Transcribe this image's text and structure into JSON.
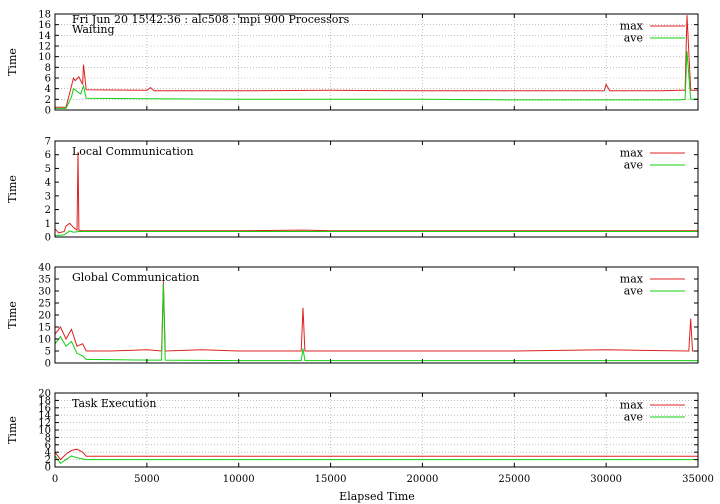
{
  "header_line": "Fri Jun 20 15:42:36 : alc508 : mpi 900 Processors",
  "xlabel": "Elapsed Time",
  "colors": {
    "max": "#e02020",
    "ave": "#10d010",
    "frame": "#000000",
    "grid": "#9a9a9a"
  },
  "chart_data": [
    {
      "type": "line",
      "title": "Waiting",
      "ylabel": "Time",
      "xlim": [
        0,
        35000
      ],
      "ylim": [
        0,
        18
      ],
      "yticks": [
        0,
        2,
        4,
        6,
        8,
        10,
        12,
        14,
        16,
        18
      ],
      "xticks": [
        0,
        5000,
        10000,
        15000,
        20000,
        25000,
        30000,
        35000
      ],
      "grid": true,
      "legend": "top-right",
      "series": [
        {
          "name": "max",
          "color": "#e02020",
          "x": [
            0,
            600,
            900,
            1000,
            1100,
            1300,
            1500,
            1550,
            1700,
            5000,
            5200,
            5400,
            10000,
            15000,
            20000,
            25000,
            29900,
            30000,
            30200,
            33000,
            34000,
            34300,
            34400,
            34600,
            35000
          ],
          "y": [
            0.5,
            0.5,
            4.5,
            6.0,
            5.5,
            6.2,
            4.8,
            8.5,
            3.8,
            3.7,
            4.2,
            3.6,
            3.6,
            3.7,
            3.6,
            3.6,
            3.6,
            4.8,
            3.6,
            3.6,
            3.7,
            3.7,
            17.8,
            3.7,
            3.7
          ]
        },
        {
          "name": "ave",
          "color": "#10d010",
          "x": [
            0,
            600,
            900,
            1000,
            1200,
            1400,
            1550,
            1700,
            5000,
            10000,
            15000,
            20000,
            25000,
            30000,
            34000,
            34300,
            34400,
            34600,
            35000
          ],
          "y": [
            0.3,
            0.3,
            2.5,
            4.0,
            3.5,
            3.0,
            4.5,
            2.2,
            2.1,
            2.0,
            2.0,
            2.0,
            1.9,
            1.9,
            1.9,
            2.0,
            11.0,
            2.0,
            2.0
          ]
        }
      ]
    },
    {
      "type": "line",
      "title": "Local Communication",
      "ylabel": "Time",
      "xlim": [
        0,
        35000
      ],
      "ylim": [
        0,
        7
      ],
      "yticks": [
        0,
        1,
        2,
        3,
        4,
        5,
        6,
        7
      ],
      "xticks": [
        0,
        5000,
        10000,
        15000,
        20000,
        25000,
        30000,
        35000
      ],
      "grid": false,
      "legend": "top-right",
      "series": [
        {
          "name": "max",
          "color": "#e02020",
          "x": [
            0,
            200,
            500,
            600,
            800,
            1000,
            1200,
            1250,
            1300,
            1450,
            5000,
            10000,
            13500,
            15000,
            20000,
            25000,
            30000,
            35000
          ],
          "y": [
            0.6,
            0.3,
            0.4,
            0.8,
            1.0,
            0.7,
            0.5,
            6.2,
            0.5,
            0.45,
            0.45,
            0.45,
            0.5,
            0.45,
            0.45,
            0.45,
            0.45,
            0.45
          ]
        },
        {
          "name": "ave",
          "color": "#10d010",
          "x": [
            0,
            500,
            800,
            1000,
            1300,
            5000,
            15000,
            25000,
            35000
          ],
          "y": [
            0.1,
            0.15,
            0.45,
            0.35,
            0.4,
            0.4,
            0.4,
            0.4,
            0.4
          ]
        }
      ]
    },
    {
      "type": "line",
      "title": "Global Communication",
      "ylabel": "Time",
      "xlim": [
        0,
        35000
      ],
      "ylim": [
        0,
        40
      ],
      "yticks": [
        0,
        5,
        10,
        15,
        20,
        25,
        30,
        35,
        40
      ],
      "xticks": [
        0,
        5000,
        10000,
        15000,
        20000,
        25000,
        30000,
        35000
      ],
      "grid": false,
      "legend": "top-right",
      "series": [
        {
          "name": "max",
          "color": "#e02020",
          "x": [
            0,
            300,
            600,
            900,
            1200,
            1500,
            1700,
            3000,
            5000,
            5800,
            5900,
            6000,
            8000,
            10000,
            13400,
            13500,
            13600,
            15000,
            20000,
            25000,
            30000,
            34500,
            34600,
            34700,
            35000
          ],
          "y": [
            12,
            15,
            10,
            14,
            7,
            8,
            5,
            5,
            5.5,
            5,
            34,
            5,
            5.5,
            5,
            5,
            23,
            5,
            5,
            5,
            5,
            5.5,
            5,
            18.5,
            5,
            5
          ]
        },
        {
          "name": "ave",
          "color": "#10d010",
          "x": [
            0,
            300,
            600,
            900,
            1200,
            1500,
            1700,
            5000,
            5800,
            5900,
            6000,
            10000,
            13400,
            13500,
            13600,
            20000,
            30000,
            35000
          ],
          "y": [
            8,
            11,
            7,
            9,
            4,
            3,
            1.5,
            1.2,
            1.2,
            33,
            1.2,
            1.0,
            1.0,
            6,
            1.0,
            1.0,
            1.0,
            1.0
          ]
        }
      ]
    },
    {
      "type": "line",
      "title": "Task Execution",
      "ylabel": "Time",
      "xlim": [
        0,
        35000
      ],
      "ylim": [
        0,
        20
      ],
      "yticks": [
        0,
        2,
        4,
        6,
        8,
        10,
        12,
        14,
        16,
        18,
        20
      ],
      "xticks": [
        0,
        5000,
        10000,
        15000,
        20000,
        25000,
        30000,
        35000
      ],
      "grid": true,
      "legend": "top-right",
      "series": [
        {
          "name": "max",
          "color": "#e02020",
          "x": [
            0,
            300,
            600,
            900,
            1200,
            1500,
            1700,
            5000,
            10000,
            15000,
            20000,
            25000,
            30000,
            35000
          ],
          "y": [
            4,
            2,
            3.5,
            4.5,
            4.8,
            4.0,
            2.9,
            2.9,
            2.9,
            2.9,
            2.9,
            2.9,
            2.9,
            2.9
          ]
        },
        {
          "name": "ave",
          "color": "#10d010",
          "x": [
            0,
            300,
            600,
            900,
            1200,
            1500,
            1700,
            5000,
            10000,
            20000,
            35000
          ],
          "y": [
            3,
            1,
            2,
            3,
            2.5,
            2.2,
            2.0,
            2.0,
            2.0,
            2.0,
            2.0
          ]
        }
      ]
    }
  ]
}
